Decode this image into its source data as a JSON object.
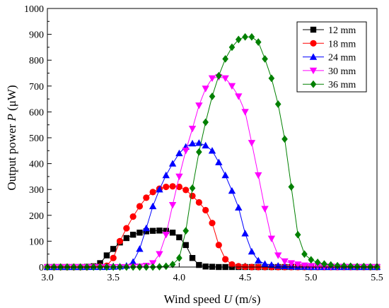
{
  "chart_data": {
    "type": "line",
    "title": "",
    "xlabel": "Wind speed U (m/s)",
    "ylabel": "Output power P (μW)",
    "xlabel_parts": {
      "pre": "Wind speed ",
      "var": "U",
      "post": " (m/s)"
    },
    "ylabel_parts": {
      "pre": "Output power ",
      "var": "P",
      "post": " (μW)"
    },
    "xlim": [
      3.0,
      5.5
    ],
    "ylim": [
      0,
      1000
    ],
    "xticks": [
      "3.0",
      "3.5",
      "4.0",
      "4.5",
      "5.0",
      "5.5"
    ],
    "yticks": [
      "0",
      "100",
      "200",
      "300",
      "400",
      "500",
      "600",
      "700",
      "800",
      "900",
      "1000"
    ],
    "grid": false,
    "legend_position": "top-right",
    "series": [
      {
        "name": "12 mm",
        "color": "#000000",
        "marker": "square",
        "x": [
          3.0,
          3.05,
          3.1,
          3.15,
          3.2,
          3.25,
          3.3,
          3.35,
          3.4,
          3.45,
          3.5,
          3.55,
          3.6,
          3.65,
          3.7,
          3.75,
          3.8,
          3.85,
          3.9,
          3.95,
          4.0,
          4.05,
          4.1,
          4.15,
          4.2,
          4.25,
          4.3,
          4.35,
          4.4,
          4.45,
          4.5,
          4.55,
          4.6,
          4.65,
          4.7,
          4.75,
          4.8,
          4.85,
          4.9,
          4.95,
          5.0,
          5.05,
          5.1,
          5.15,
          5.2,
          5.25,
          5.3,
          5.35,
          5.4,
          5.45,
          5.5
        ],
        "y": [
          0,
          0,
          0,
          0,
          0,
          0,
          1,
          3,
          15,
          45,
          70,
          95,
          112,
          125,
          133,
          138,
          140,
          141,
          140,
          133,
          115,
          85,
          35,
          8,
          2,
          1,
          0,
          0,
          0,
          0,
          0,
          0,
          0,
          0,
          0,
          0,
          0,
          0,
          0,
          0,
          0,
          0,
          0,
          0,
          0,
          0,
          0,
          0,
          0,
          0,
          0
        ]
      },
      {
        "name": "18 mm",
        "color": "#ff0000",
        "marker": "circle",
        "x": [
          3.0,
          3.05,
          3.1,
          3.15,
          3.2,
          3.25,
          3.3,
          3.35,
          3.4,
          3.45,
          3.5,
          3.55,
          3.6,
          3.65,
          3.7,
          3.75,
          3.8,
          3.85,
          3.9,
          3.95,
          4.0,
          4.05,
          4.1,
          4.15,
          4.2,
          4.25,
          4.3,
          4.35,
          4.4,
          4.45,
          4.5,
          4.55,
          4.6,
          4.65,
          4.7,
          4.75,
          4.8,
          4.85,
          4.9,
          4.95,
          5.0,
          5.05,
          5.1,
          5.15,
          5.2,
          5.25,
          5.3,
          5.35,
          5.4,
          5.45,
          5.5
        ],
        "y": [
          0,
          0,
          0,
          0,
          0,
          0,
          0,
          1,
          2,
          5,
          35,
          100,
          150,
          195,
          235,
          268,
          290,
          303,
          310,
          312,
          310,
          298,
          275,
          250,
          220,
          170,
          85,
          30,
          10,
          3,
          1,
          0,
          0,
          0,
          0,
          0,
          0,
          0,
          0,
          0,
          0,
          0,
          0,
          0,
          0,
          0,
          0,
          0,
          0,
          0,
          0
        ]
      },
      {
        "name": "24 mm",
        "color": "#0000ff",
        "marker": "triangle-up",
        "x": [
          3.0,
          3.05,
          3.1,
          3.15,
          3.2,
          3.25,
          3.3,
          3.35,
          3.4,
          3.45,
          3.5,
          3.55,
          3.6,
          3.65,
          3.7,
          3.75,
          3.8,
          3.85,
          3.9,
          3.95,
          4.0,
          4.05,
          4.1,
          4.15,
          4.2,
          4.25,
          4.3,
          4.35,
          4.4,
          4.45,
          4.5,
          4.55,
          4.6,
          4.65,
          4.7,
          4.75,
          4.8,
          4.85,
          4.9,
          4.95,
          5.0,
          5.05,
          5.1,
          5.15,
          5.2,
          5.25,
          5.3,
          5.35,
          5.4,
          5.45,
          5.5
        ],
        "y": [
          0,
          0,
          0,
          0,
          0,
          0,
          0,
          0,
          0,
          0,
          1,
          2,
          5,
          20,
          70,
          150,
          235,
          300,
          355,
          400,
          440,
          465,
          478,
          480,
          470,
          450,
          405,
          355,
          295,
          230,
          130,
          60,
          25,
          12,
          8,
          5,
          3,
          2,
          1,
          1,
          0,
          0,
          0,
          0,
          0,
          0,
          0,
          0,
          0,
          0,
          0
        ]
      },
      {
        "name": "30 mm",
        "color": "#ff00ff",
        "marker": "triangle-down",
        "x": [
          3.0,
          3.05,
          3.1,
          3.15,
          3.2,
          3.25,
          3.3,
          3.35,
          3.4,
          3.45,
          3.5,
          3.55,
          3.6,
          3.65,
          3.7,
          3.75,
          3.8,
          3.85,
          3.9,
          3.95,
          4.0,
          4.05,
          4.1,
          4.15,
          4.2,
          4.25,
          4.3,
          4.35,
          4.4,
          4.45,
          4.5,
          4.55,
          4.6,
          4.65,
          4.7,
          4.75,
          4.8,
          4.85,
          4.9,
          4.95,
          5.0,
          5.05,
          5.1,
          5.15,
          5.2,
          5.25,
          5.3,
          5.35,
          5.4,
          5.45,
          5.5
        ],
        "y": [
          0,
          0,
          0,
          0,
          0,
          0,
          0,
          0,
          0,
          0,
          0,
          0,
          0,
          1,
          2,
          5,
          15,
          50,
          125,
          240,
          350,
          450,
          535,
          625,
          690,
          730,
          735,
          730,
          700,
          660,
          600,
          480,
          355,
          225,
          110,
          45,
          22,
          15,
          10,
          6,
          4,
          3,
          2,
          2,
          1,
          1,
          0,
          0,
          0,
          0,
          0
        ]
      },
      {
        "name": "36 mm",
        "color": "#008000",
        "marker": "diamond",
        "x": [
          3.0,
          3.05,
          3.1,
          3.15,
          3.2,
          3.25,
          3.3,
          3.35,
          3.4,
          3.45,
          3.5,
          3.55,
          3.6,
          3.65,
          3.7,
          3.75,
          3.8,
          3.85,
          3.9,
          3.95,
          4.0,
          4.05,
          4.1,
          4.15,
          4.2,
          4.25,
          4.3,
          4.35,
          4.4,
          4.45,
          4.5,
          4.55,
          4.6,
          4.65,
          4.7,
          4.75,
          4.8,
          4.85,
          4.9,
          4.95,
          5.0,
          5.05,
          5.1,
          5.15,
          5.2,
          5.25,
          5.3,
          5.35,
          5.4,
          5.45,
          5.5
        ],
        "y": [
          0,
          0,
          0,
          0,
          0,
          0,
          0,
          0,
          0,
          0,
          0,
          0,
          0,
          0,
          0,
          0,
          0,
          1,
          3,
          10,
          35,
          140,
          305,
          445,
          560,
          660,
          740,
          805,
          850,
          880,
          890,
          890,
          870,
          805,
          730,
          630,
          495,
          310,
          125,
          50,
          28,
          18,
          12,
          8,
          5,
          4,
          3,
          2,
          2,
          1,
          1
        ]
      }
    ]
  }
}
